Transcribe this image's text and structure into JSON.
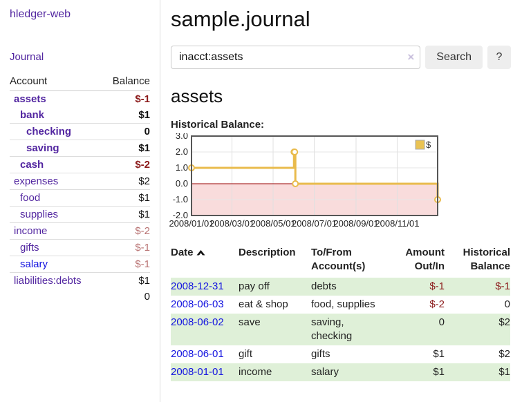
{
  "app": {
    "title": "hledger-web",
    "nav_journal": "Journal"
  },
  "sidebar": {
    "header": {
      "account": "Account",
      "balance": "Balance"
    },
    "accounts": [
      {
        "name": "assets",
        "depth": 0,
        "bold": true,
        "balance": "$-1",
        "balance_style": "neg-strong"
      },
      {
        "name": "bank",
        "depth": 1,
        "bold": true,
        "balance": "$1",
        "balance_style": "pos"
      },
      {
        "name": "checking",
        "depth": 2,
        "bold": true,
        "balance": "0",
        "balance_style": "pos"
      },
      {
        "name": "saving",
        "depth": 2,
        "bold": true,
        "balance": "$1",
        "balance_style": "pos"
      },
      {
        "name": "cash",
        "depth": 1,
        "bold": true,
        "balance": "$-2",
        "balance_style": "neg-strong"
      },
      {
        "name": "expenses",
        "depth": 0,
        "bold": false,
        "balance": "$2",
        "balance_style": "pos"
      },
      {
        "name": "food",
        "depth": 1,
        "bold": false,
        "balance": "$1",
        "balance_style": "pos"
      },
      {
        "name": "supplies",
        "depth": 1,
        "bold": false,
        "balance": "$1",
        "balance_style": "pos"
      },
      {
        "name": "income",
        "depth": 0,
        "bold": false,
        "balance": "$-2",
        "balance_style": "neg-muted"
      },
      {
        "name": "gifts",
        "depth": 1,
        "bold": false,
        "balance": "$-1",
        "balance_style": "neg-muted"
      },
      {
        "name": "salary",
        "depth": 1,
        "bold": false,
        "balance": "$-1",
        "balance_style": "neg-muted",
        "link": "unvisited"
      },
      {
        "name": "liabilities:debts",
        "depth": 0,
        "bold": false,
        "balance": "$1",
        "balance_style": "pos"
      }
    ],
    "total": "0"
  },
  "main": {
    "title": "sample.journal",
    "search": {
      "value": "inacct:assets",
      "clear": "×",
      "button": "Search",
      "help": "?"
    },
    "account_heading": "assets",
    "chart_label": "Historical Balance:"
  },
  "chart_data": {
    "type": "line",
    "step": true,
    "title": "Historical Balance",
    "series": [
      {
        "name": "$",
        "color": "#e9bb4c",
        "points": [
          {
            "date": "2008-01-01",
            "value": 1
          },
          {
            "date": "2008-06-01",
            "value": 2
          },
          {
            "date": "2008-06-02",
            "value": 2
          },
          {
            "date": "2008-06-03",
            "value": 0
          },
          {
            "date": "2008-12-31",
            "value": -1
          }
        ]
      }
    ],
    "x_range": [
      "2008-01-01",
      "2008-12-31"
    ],
    "x_ticks": [
      "2008/01/01",
      "2008/03/01",
      "2008/05/01",
      "2008/07/01",
      "2008/09/01",
      "2008/11/01"
    ],
    "y_ticks": [
      3.0,
      2.0,
      1.0,
      0.0,
      -1.0,
      -2.0
    ],
    "ylim": [
      -2,
      3
    ],
    "grid": true,
    "legend": {
      "label": "$",
      "position": "top-right",
      "swatch_color": "#eac353"
    },
    "negative_region_color": "#f9dcdc",
    "zero_line_color": "#990000",
    "border_color": "#565656"
  },
  "register": {
    "columns": [
      {
        "line1": "Date",
        "sortable": true
      },
      {
        "line1": "Description"
      },
      {
        "line1": "To/From",
        "line2": "Account(s)"
      },
      {
        "line1": "Amount",
        "line2": "Out/In",
        "align": "right"
      },
      {
        "line1": "Historical",
        "line2": "Balance",
        "align": "right"
      }
    ],
    "rows": [
      {
        "date": "2008-12-31",
        "description": "pay off",
        "accounts": "debts",
        "amount": "$-1",
        "amount_neg": true,
        "balance": "$-1",
        "balance_neg": true
      },
      {
        "date": "2008-06-03",
        "description": "eat & shop",
        "accounts": "food, supplies",
        "amount": "$-2",
        "amount_neg": true,
        "balance": "0",
        "balance_neg": false
      },
      {
        "date": "2008-06-02",
        "description": "save",
        "accounts": "saving, checking",
        "amount": "0",
        "amount_neg": false,
        "balance": "$2",
        "balance_neg": false
      },
      {
        "date": "2008-06-01",
        "description": "gift",
        "accounts": "gifts",
        "amount": "$1",
        "amount_neg": false,
        "balance": "$2",
        "balance_neg": false
      },
      {
        "date": "2008-01-01",
        "description": "income",
        "accounts": "salary",
        "amount": "$1",
        "amount_neg": false,
        "balance": "$1",
        "balance_neg": false
      }
    ]
  }
}
